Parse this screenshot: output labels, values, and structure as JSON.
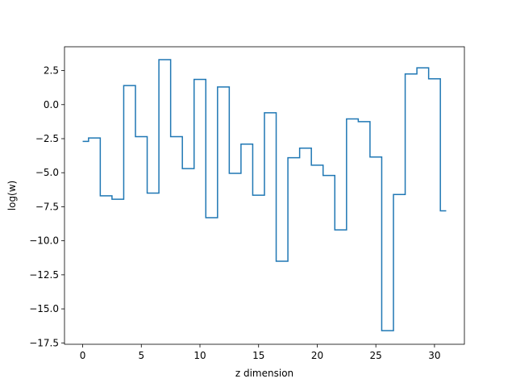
{
  "chart_data": {
    "type": "line",
    "drawstyle": "steps-mid",
    "xlabel": "z dimension",
    "ylabel": "log(w)",
    "xlim": [
      -1.55,
      32.55
    ],
    "ylim": [
      -17.6,
      4.25
    ],
    "xticks": [
      0,
      5,
      10,
      15,
      20,
      25,
      30
    ],
    "yticks": [
      2.5,
      0.0,
      -2.5,
      -5.0,
      -7.5,
      -10.0,
      -12.5,
      -15.0,
      -17.5
    ],
    "ytick_labels": [
      "2.5",
      "0.0",
      "−2.5",
      "−5.0",
      "−7.5",
      "−10.0",
      "−12.5",
      "−15.0",
      "−17.5"
    ],
    "grid": false,
    "legend": "none",
    "series": [
      {
        "color": "#1f77b4",
        "x": [
          0,
          1,
          2,
          3,
          4,
          5,
          6,
          7,
          8,
          9,
          10,
          11,
          12,
          13,
          14,
          15,
          16,
          17,
          18,
          19,
          20,
          21,
          22,
          23,
          24,
          25,
          26,
          27,
          28,
          29,
          30,
          31
        ],
        "values": [
          -2.7,
          -2.45,
          -6.7,
          -6.95,
          1.4,
          -2.35,
          -6.5,
          3.3,
          -2.35,
          -4.7,
          1.85,
          -8.3,
          1.3,
          -5.05,
          -2.9,
          -6.65,
          -0.6,
          -11.5,
          -3.9,
          -3.2,
          -4.45,
          -5.2,
          -9.2,
          -1.05,
          -1.25,
          -3.85,
          -16.6,
          -6.6,
          2.25,
          2.7,
          1.9,
          -7.8
        ]
      }
    ]
  }
}
